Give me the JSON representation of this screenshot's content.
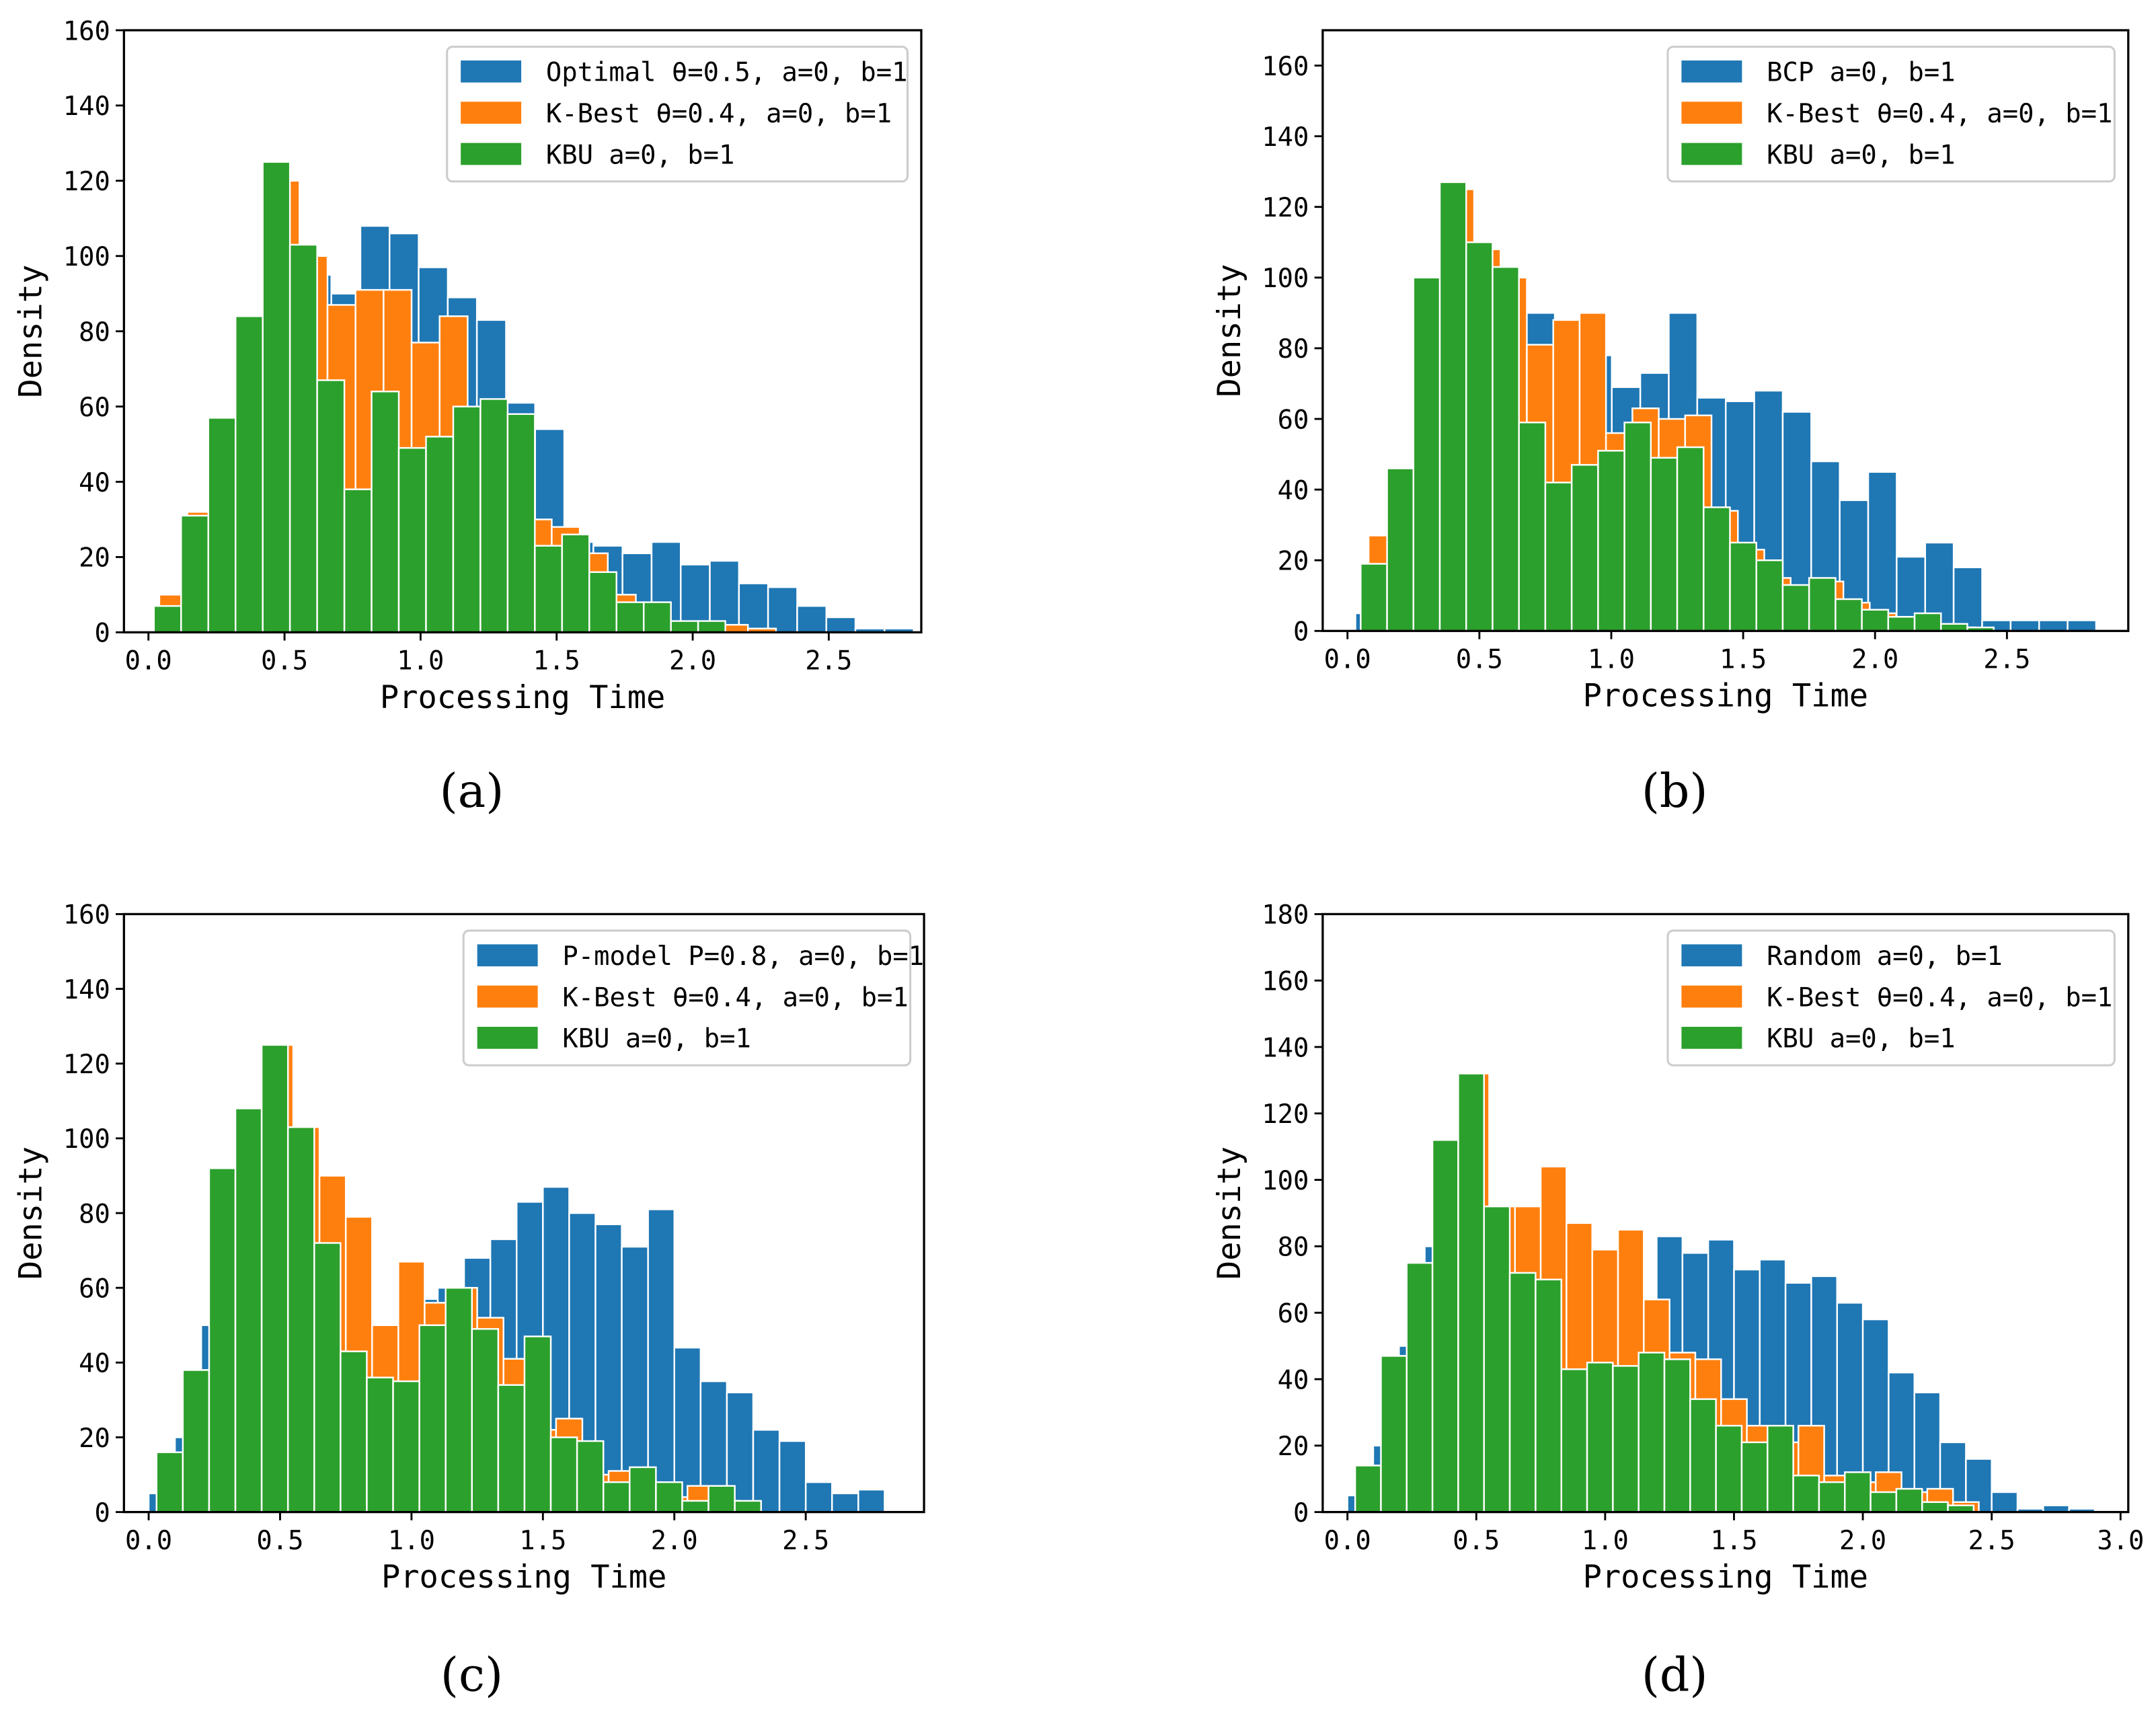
{
  "chart_data": [
    {
      "type": "bar",
      "caption": "(a)",
      "xlabel": "Processing Time",
      "ylabel": "Density",
      "xlim": [
        -0.09,
        2.84
      ],
      "ylim": [
        0,
        160
      ],
      "xticks": [
        "0.0",
        "0.5",
        "1.0",
        "1.5",
        "2.0",
        "2.5"
      ],
      "yticks": [
        "0",
        "20",
        "40",
        "60",
        "80",
        "100",
        "120",
        "140",
        "160"
      ],
      "legend_position": "top-right",
      "series": [
        {
          "name": "Optimal  θ=0.5, a=0, b=1",
          "color": "#1f77b4",
          "x_start": 0.03,
          "bin_width": 0.107,
          "values": [
            5,
            25,
            50,
            75,
            100,
            95,
            90,
            108,
            106,
            97,
            89,
            83,
            61,
            54,
            24,
            23,
            21,
            24,
            18,
            19,
            13,
            12,
            7,
            4,
            1,
            1
          ]
        },
        {
          "name": "K-Best  θ=0.4, a=0, b=1",
          "color": "#ff7f0e",
          "x_start": 0.04,
          "bin_width": 0.103,
          "values": [
            10,
            32,
            55,
            80,
            120,
            100,
            87,
            91,
            91,
            77,
            84,
            55,
            39,
            30,
            28,
            21,
            10,
            5,
            2,
            2,
            2,
            1
          ]
        },
        {
          "name": "KBU  a=0, b=1",
          "color": "#2ca02c",
          "x_start": 0.02,
          "bin_width": 0.1,
          "values": [
            7,
            31,
            57,
            84,
            125,
            103,
            67,
            38,
            64,
            49,
            52,
            60,
            62,
            58,
            23,
            26,
            16,
            8,
            8,
            3,
            3
          ]
        }
      ]
    },
    {
      "type": "bar",
      "caption": "(b)",
      "xlabel": "Processing Time",
      "ylabel": "Density",
      "xlim": [
        -0.094,
        2.96
      ],
      "ylim": [
        0,
        170
      ],
      "xticks": [
        "0.0",
        "0.5",
        "1.0",
        "1.5",
        "2.0",
        "2.5"
      ],
      "yticks": [
        "0",
        "20",
        "40",
        "60",
        "80",
        "100",
        "120",
        "140",
        "160"
      ],
      "legend_position": "top-right",
      "series": [
        {
          "name": "BCP  a=0, b=1",
          "color": "#1f77b4",
          "x_start": 0.03,
          "bin_width": 0.108,
          "values": [
            5,
            20,
            60,
            90,
            100,
            100,
            90,
            80,
            78,
            69,
            73,
            90,
            66,
            65,
            68,
            62,
            48,
            37,
            45,
            21,
            25,
            18,
            3,
            3,
            3,
            3
          ]
        },
        {
          "name": "K-Best  θ=0.4, a=0, b=1",
          "color": "#ff7f0e",
          "x_start": 0.08,
          "bin_width": 0.1,
          "values": [
            27,
            45,
            98,
            125,
            108,
            100,
            81,
            88,
            90,
            56,
            63,
            60,
            61,
            34,
            23,
            15,
            12,
            14,
            8,
            5,
            4,
            1,
            1
          ]
        },
        {
          "name": "KBU  a=0, b=1",
          "color": "#2ca02c",
          "x_start": 0.05,
          "bin_width": 0.1,
          "values": [
            19,
            46,
            100,
            127,
            110,
            103,
            59,
            42,
            47,
            51,
            59,
            49,
            52,
            35,
            25,
            20,
            13,
            15,
            9,
            6,
            4,
            5,
            2,
            1
          ]
        }
      ]
    },
    {
      "type": "bar",
      "caption": "(c)",
      "xlabel": "Processing Time",
      "ylabel": "Density",
      "xlim": [
        -0.094,
        2.95
      ],
      "ylim": [
        0,
        160
      ],
      "xticks": [
        "0.0",
        "0.5",
        "1.0",
        "1.5",
        "2.0",
        "2.5"
      ],
      "yticks": [
        "0",
        "20",
        "40",
        "60",
        "80",
        "100",
        "120",
        "140",
        "160"
      ],
      "legend_position": "top-right",
      "series": [
        {
          "name": "P-model P=0.8, a=0, b=1",
          "color": "#1f77b4",
          "x_start": 0.0,
          "bin_width": 0.1,
          "values": [
            5,
            20,
            50,
            70,
            90,
            80,
            60,
            50,
            45,
            50,
            57,
            60,
            68,
            73,
            83,
            87,
            80,
            77,
            71,
            81,
            44,
            35,
            32,
            22,
            19,
            8,
            5,
            6
          ]
        },
        {
          "name": "K-Best  θ=0.4, a=0, b=1",
          "color": "#ff7f0e",
          "x_start": 0.05,
          "bin_width": 0.1,
          "values": [
            16,
            38,
            92,
            108,
            125,
            103,
            90,
            79,
            50,
            67,
            56,
            60,
            52,
            41,
            22,
            25,
            10,
            11,
            8,
            4,
            7,
            3
          ]
        },
        {
          "name": "KBU  a=0, b=1",
          "color": "#2ca02c",
          "x_start": 0.03,
          "bin_width": 0.1,
          "values": [
            16,
            38,
            92,
            108,
            125,
            103,
            72,
            43,
            36,
            35,
            50,
            60,
            49,
            34,
            47,
            20,
            19,
            8,
            12,
            8,
            3,
            7,
            3
          ]
        }
      ]
    },
    {
      "type": "bar",
      "caption": "(d)",
      "xlabel": "Processing Time",
      "ylabel": "Density",
      "xlim": [
        -0.096,
        3.03
      ],
      "ylim": [
        0,
        180
      ],
      "xticks": [
        "0.0",
        "0.5",
        "1.0",
        "1.5",
        "2.0",
        "2.5",
        "3.0"
      ],
      "yticks": [
        "0",
        "20",
        "40",
        "60",
        "80",
        "100",
        "120",
        "140",
        "160",
        "180"
      ],
      "legend_position": "top-right",
      "series": [
        {
          "name": "Random a=0, b=1",
          "color": "#1f77b4",
          "x_start": 0.0,
          "bin_width": 0.1,
          "values": [
            5,
            20,
            50,
            80,
            100,
            80,
            70,
            60,
            55,
            50,
            63,
            64,
            83,
            78,
            82,
            73,
            76,
            69,
            71,
            63,
            58,
            42,
            36,
            21,
            16,
            6,
            1,
            2,
            1
          ]
        },
        {
          "name": "K-Best  θ=0.4, a=0, b=1",
          "color": "#ff7f0e",
          "x_start": 0.05,
          "bin_width": 0.1,
          "values": [
            14,
            47,
            75,
            112,
            132,
            92,
            92,
            104,
            87,
            79,
            85,
            64,
            48,
            46,
            34,
            26,
            21,
            26,
            11,
            9,
            12,
            6,
            7,
            3
          ]
        },
        {
          "name": "KBU  a=0, b=1",
          "color": "#2ca02c",
          "x_start": 0.03,
          "bin_width": 0.1,
          "values": [
            14,
            47,
            75,
            112,
            132,
            92,
            72,
            70,
            43,
            45,
            44,
            48,
            46,
            34,
            26,
            21,
            26,
            11,
            9,
            12,
            6,
            7,
            3,
            2
          ]
        }
      ]
    }
  ]
}
